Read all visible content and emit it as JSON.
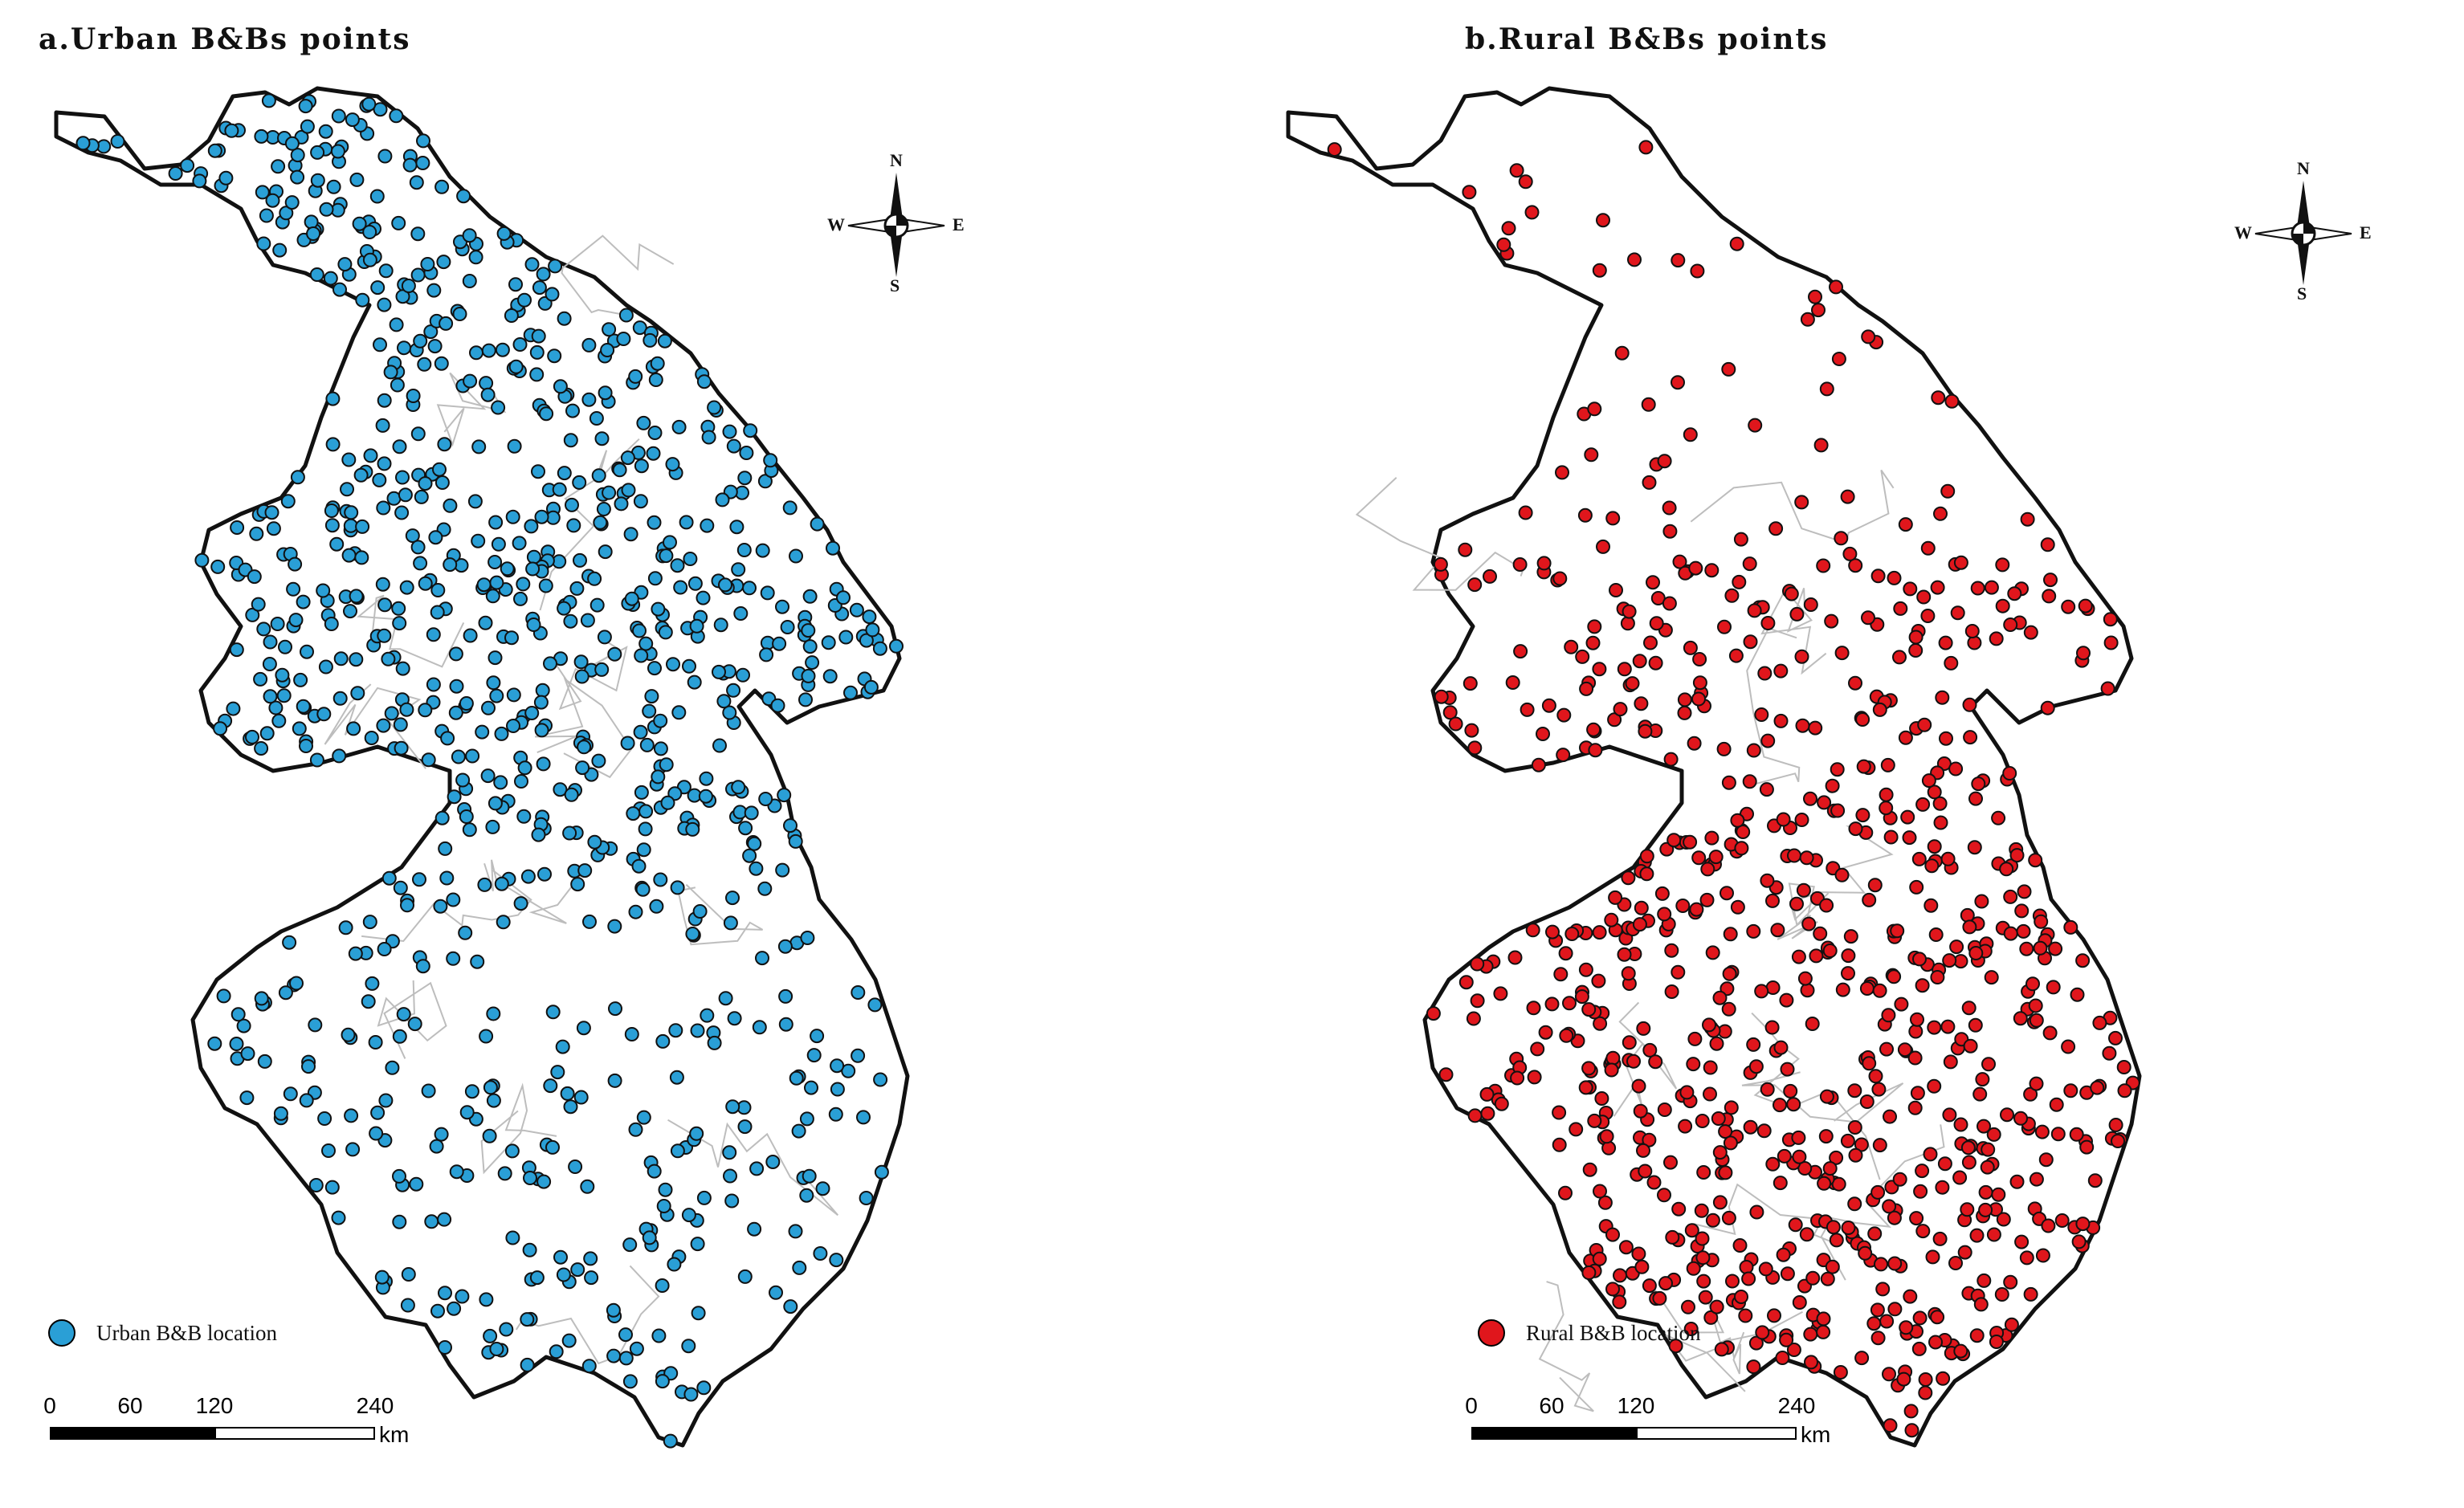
{
  "panels": [
    {
      "id": "a",
      "title": "a.Urban B&Bs points",
      "legend_label": "Urban B&B location",
      "point_color": "#2a9fd6",
      "point_density": "high north and central",
      "scale": {
        "ticks": [
          "0",
          "60",
          "120",
          "240"
        ],
        "unit": "km"
      },
      "compass": {
        "n": "N",
        "s": "S",
        "e": "E",
        "w": "W"
      }
    },
    {
      "id": "b",
      "title": "b.Rural B&Bs points",
      "legend_label": "Rural B&B location",
      "point_color": "#e0161c",
      "point_density": "high south",
      "scale": {
        "ticks": [
          "0",
          "60",
          "120",
          "240"
        ],
        "unit": "km"
      },
      "compass": {
        "n": "N",
        "s": "S",
        "e": "E",
        "w": "W"
      }
    }
  ]
}
